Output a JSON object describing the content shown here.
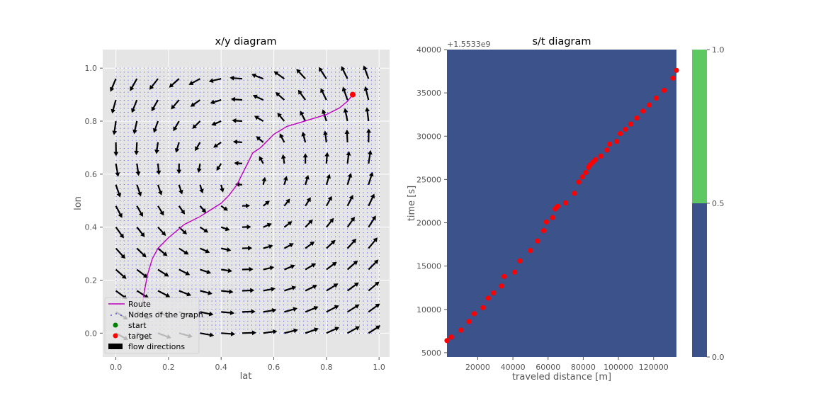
{
  "chart_data": [
    {
      "type": "quiver",
      "title": "x/y diagram",
      "xlabel": "lat",
      "ylabel": "lon",
      "xlim": [
        -0.05,
        1.04
      ],
      "ylim": [
        -0.09,
        1.07
      ],
      "xticks": [
        0.0,
        0.2,
        0.4,
        0.6,
        0.8,
        1.0
      ],
      "yticks": [
        0.0,
        0.2,
        0.4,
        0.6,
        0.8,
        1.0
      ],
      "xtick_labels": [
        "0.0",
        "0.2",
        "0.4",
        "0.6",
        "0.8",
        "1.0"
      ],
      "ytick_labels": [
        "0.0",
        "0.2",
        "0.4",
        "0.6",
        "0.8",
        "1.0"
      ],
      "grid": true,
      "legend_position": "lower-left",
      "legend": [
        {
          "label": "Route",
          "marker": "line",
          "color": "#bf00bf"
        },
        {
          "label": "Nodes of the graph",
          "marker": "dot",
          "color": "#0000ff"
        },
        {
          "label": "start",
          "marker": "circle",
          "color": "#008000"
        },
        {
          "label": "target",
          "marker": "circle",
          "color": "#ff0000"
        },
        {
          "label": "flow directions",
          "marker": "box",
          "color": "#000000"
        }
      ],
      "nodes_grid": {
        "start": 0.0,
        "stop": 1.0,
        "count": 67,
        "color": "#0000ff"
      },
      "route": {
        "color": "#bf00bf",
        "x": [
          0.1,
          0.107,
          0.12,
          0.138,
          0.16,
          0.2,
          0.26,
          0.32,
          0.36,
          0.4,
          0.43,
          0.46,
          0.48,
          0.5,
          0.52,
          0.55,
          0.6,
          0.65,
          0.7,
          0.75,
          0.8,
          0.85,
          0.88,
          0.9
        ],
        "y": [
          0.1,
          0.15,
          0.22,
          0.28,
          0.32,
          0.36,
          0.41,
          0.44,
          0.465,
          0.49,
          0.52,
          0.56,
          0.6,
          0.64,
          0.68,
          0.7,
          0.75,
          0.78,
          0.795,
          0.81,
          0.825,
          0.85,
          0.875,
          0.9
        ]
      },
      "target": {
        "x": 0.9,
        "y": 0.9,
        "color": "#ff0000"
      },
      "flow": {
        "grid_x": [
          0,
          0.08,
          0.16,
          0.24,
          0.32,
          0.4,
          0.48,
          0.56,
          0.64,
          0.72,
          0.8,
          0.88,
          0.96
        ],
        "grid_y": [
          0,
          0.08,
          0.16,
          0.24,
          0.32,
          0.4,
          0.48,
          0.56,
          0.64,
          0.72,
          0.8,
          0.88,
          0.96
        ],
        "color": "#000000"
      }
    },
    {
      "type": "scatter",
      "title": "s/t diagram",
      "xlabel": "traveled distance [m]",
      "ylabel": "time [s]",
      "offset_text": "+1.5533e9",
      "xlim": [
        2500,
        133000
      ],
      "ylim": [
        4500,
        40000
      ],
      "xticks": [
        20000,
        40000,
        60000,
        80000,
        100000,
        120000
      ],
      "yticks": [
        5000,
        10000,
        15000,
        20000,
        25000,
        30000,
        35000,
        40000
      ],
      "xtick_labels": [
        "20000",
        "40000",
        "60000",
        "80000",
        "100000",
        "120000"
      ],
      "ytick_labels": [
        "5000",
        "10000",
        "15000",
        "20000",
        "25000",
        "30000",
        "35000",
        "40000"
      ],
      "background": {
        "levels": [
          0.0,
          0.5,
          1.0
        ],
        "fill_value": 0.0
      },
      "colors": {
        "low": "#3b528b",
        "high": "#5ec962",
        "point": "#ff0000"
      },
      "x": [
        2500,
        5000,
        10500,
        15000,
        18000,
        23000,
        26000,
        29000,
        33500,
        35000,
        41000,
        44000,
        50000,
        54000,
        57500,
        59000,
        62500,
        64000,
        65500,
        70000,
        75000,
        77500,
        79500,
        81500,
        83000,
        84000,
        85500,
        87000,
        90000,
        93500,
        95000,
        99000,
        101000,
        104000,
        107000,
        110500,
        114000,
        117500,
        121500,
        126000,
        131000,
        133000
      ],
      "y": [
        6400,
        6800,
        7600,
        8600,
        9500,
        10200,
        11300,
        11900,
        12700,
        13800,
        14300,
        15600,
        16800,
        17900,
        19100,
        20100,
        20600,
        21600,
        21900,
        22300,
        23400,
        24700,
        25300,
        25800,
        26400,
        26700,
        27000,
        27300,
        27700,
        28400,
        29100,
        29400,
        30300,
        30800,
        31400,
        32100,
        32900,
        33600,
        34400,
        35300,
        36700,
        37600
      ]
    },
    {
      "type": "colorbar",
      "range": [
        0.0,
        1.0
      ],
      "split": 0.5,
      "ticks": [
        0.0,
        0.5,
        1.0
      ],
      "tick_labels": [
        "0.0",
        "0.5",
        "1.0"
      ],
      "colors": {
        "low": "#3b528b",
        "high": "#5ec962"
      }
    }
  ]
}
